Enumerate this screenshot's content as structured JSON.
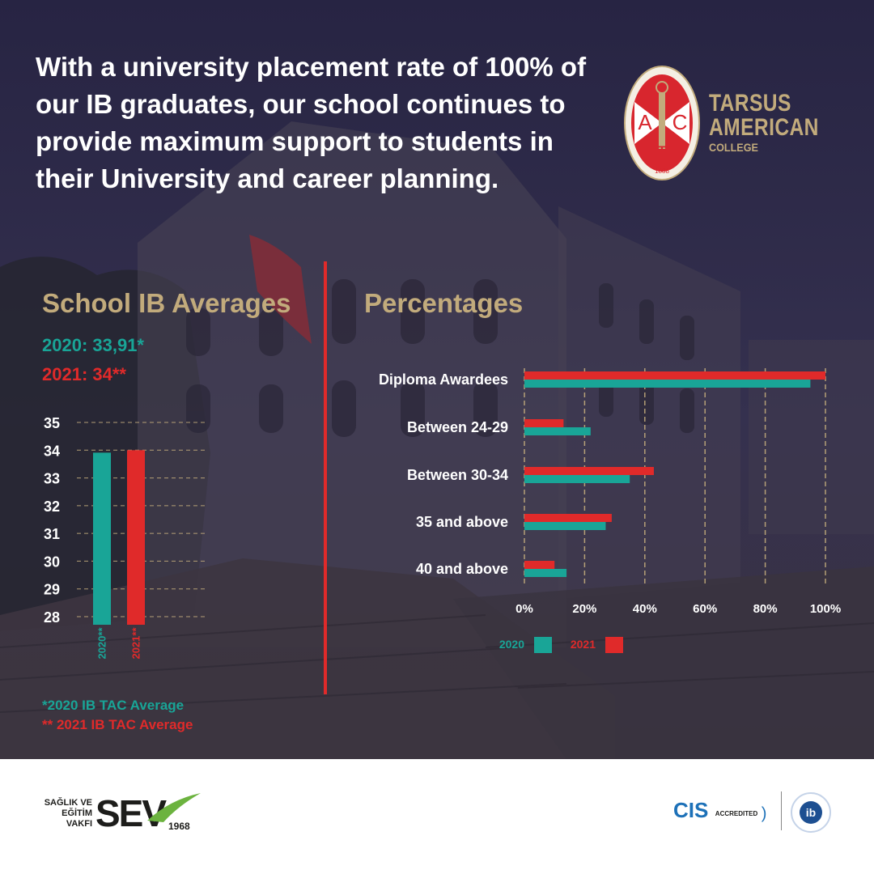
{
  "headline": "With a university placement rate of 100% of our IB graduates, our school continues to provide maximum support to students in their University and career planning.",
  "brand": {
    "logo_letters": [
      "A",
      "C",
      "T"
    ],
    "logo_year": "1888",
    "name_line1": "TARSUS",
    "name_line2": "AMERICAN",
    "name_line3": "COLLEGE"
  },
  "colors": {
    "teal_2020": "#19a597",
    "red_2021": "#e02a2a",
    "gold": "#c2ab7c",
    "background": "#2e2b4e"
  },
  "left_panel": {
    "title": "School IB Averages",
    "avg_2020": "2020: 33,91*",
    "avg_2021": "2021: 34**",
    "note_2020": "*2020 IB TAC Average",
    "note_2021": "** 2021 IB TAC Average"
  },
  "right_panel": {
    "title": "Percentages"
  },
  "chart_data": [
    {
      "type": "bar",
      "orientation": "vertical",
      "categories": [
        "2020**",
        "2021**"
      ],
      "values": [
        33.91,
        34
      ],
      "colors": [
        "#19a597",
        "#e02a2a"
      ],
      "ylim": [
        28,
        35
      ],
      "yticks": [
        28,
        29,
        30,
        31,
        32,
        33,
        34,
        35
      ],
      "grid": true
    },
    {
      "type": "bar",
      "orientation": "horizontal",
      "categories": [
        "Diploma Awardees",
        "Between 24-29",
        "Between 30-34",
        "35 and above",
        "40 and above"
      ],
      "series": [
        {
          "name": "2020",
          "color": "#19a597",
          "values": [
            95,
            22,
            35,
            27,
            14
          ]
        },
        {
          "name": "2021",
          "color": "#e02a2a",
          "values": [
            100,
            13,
            43,
            29,
            10
          ]
        }
      ],
      "xlim": [
        0,
        100
      ],
      "xticks": [
        "0%",
        "20%",
        "40%",
        "60%",
        "80%",
        "100%"
      ],
      "grid": true,
      "legend": "bottom"
    }
  ],
  "footer": {
    "sev_text_line1": "SAĞLIK VE",
    "sev_text_line2": "EĞİTİM",
    "sev_text_line3": "VAKFI",
    "sev_logo": "SEV",
    "sev_year": "1968",
    "cis_logo": "CIS",
    "cis_label": "ACCREDITED",
    "ib_logo": "ib"
  }
}
